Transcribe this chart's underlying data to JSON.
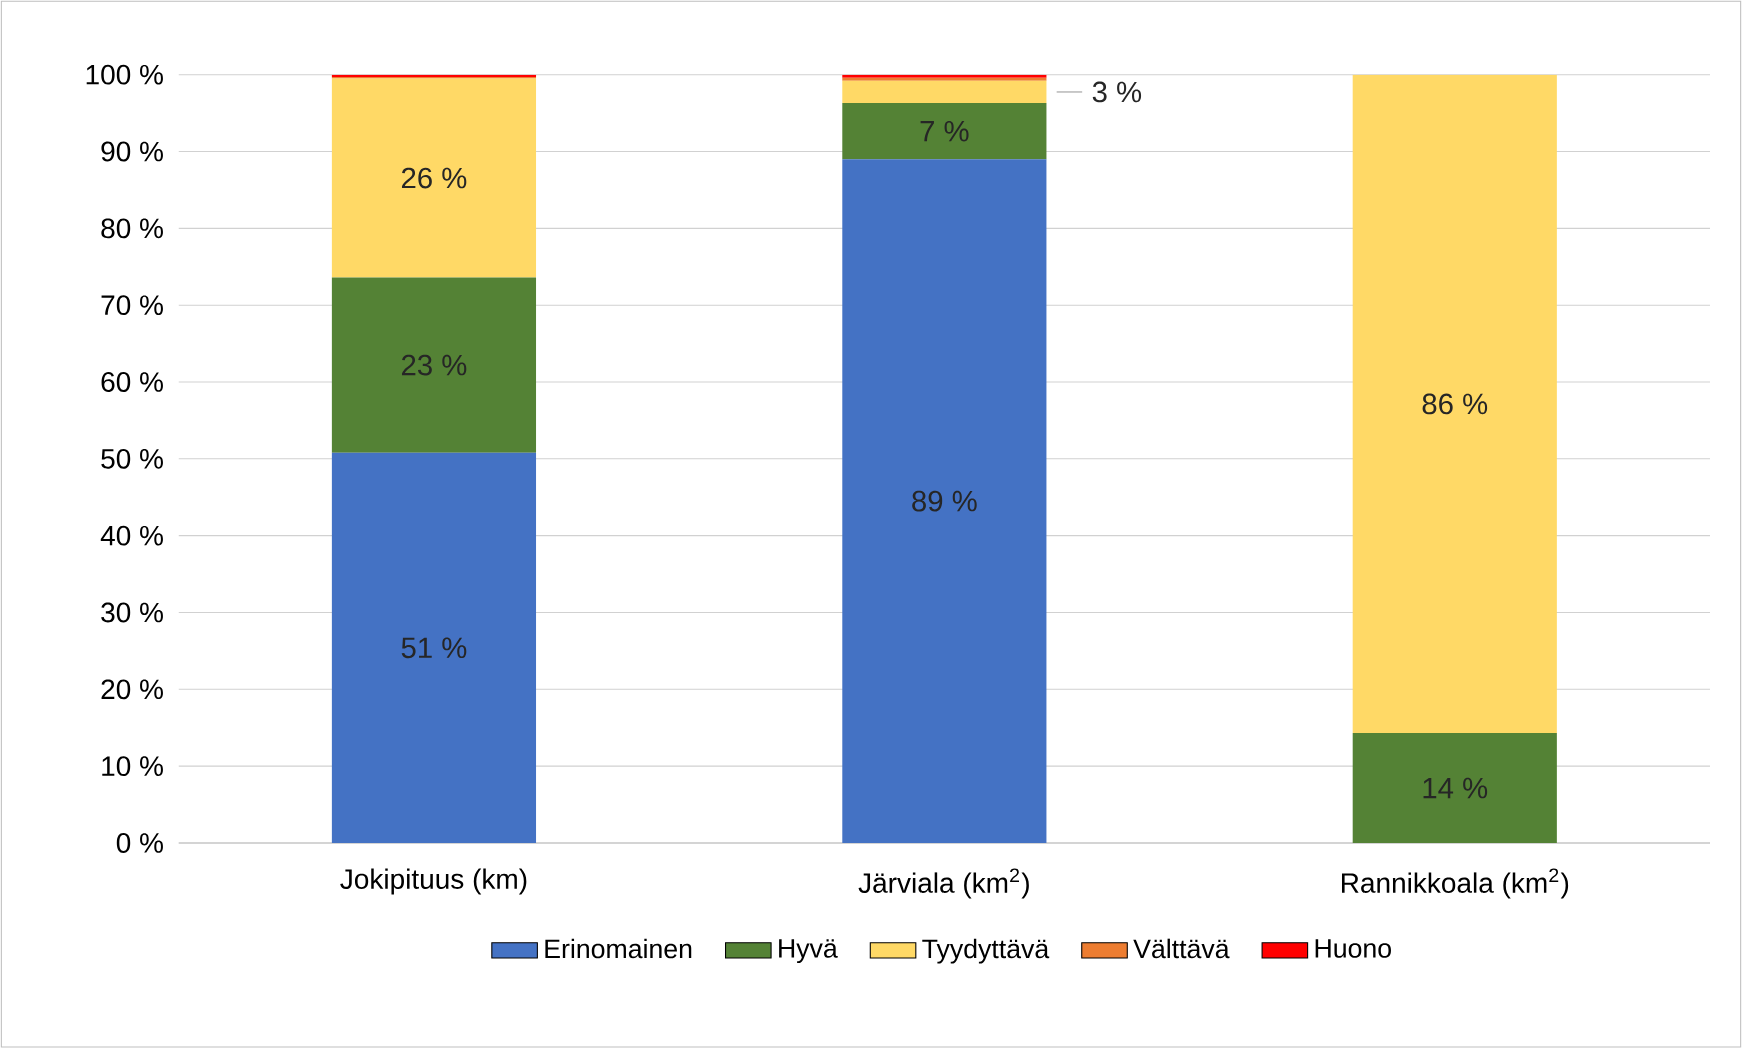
{
  "chart_data": {
    "type": "bar",
    "stacked": true,
    "categories": [
      "Jokipituus (km)",
      "Järviala (km$^{2}$)",
      "Rannikkoala (km$^{2}$)"
    ],
    "series": [
      {
        "name": "Erinomainen",
        "color": "#4472c4",
        "values": [
          50.8,
          89,
          0
        ],
        "value_labels": [
          "51 %",
          "89 %",
          null
        ]
      },
      {
        "name": "Hyvä",
        "color": "#548235",
        "values": [
          22.8,
          7.3,
          14.3
        ],
        "value_labels": [
          "23 %",
          "7 %",
          "14 %"
        ]
      },
      {
        "name": "Tyydyttävä",
        "color": "#ffd966",
        "values": [
          25.9,
          2.9,
          85.7
        ],
        "value_labels": [
          "26 %",
          "3 %",
          "86 %"
        ]
      },
      {
        "name": "Välttävä",
        "color": "#ed7d31",
        "values": [
          0.2,
          0.4,
          0
        ],
        "value_labels": [
          null,
          null,
          null
        ]
      },
      {
        "name": "Huono",
        "color": "#ff0000",
        "values": [
          0.3,
          0.4,
          0
        ],
        "value_labels": [
          null,
          null,
          null
        ]
      }
    ],
    "ylim": [
      0,
      100
    ],
    "yticks": [
      {
        "value": 0,
        "label": "0 %"
      },
      {
        "value": 10,
        "label": "10 %"
      },
      {
        "value": 20,
        "label": "20 %"
      },
      {
        "value": 30,
        "label": "30 %"
      },
      {
        "value": 40,
        "label": "40 %"
      },
      {
        "value": 50,
        "label": "50 %"
      },
      {
        "value": 60,
        "label": "60 %"
      },
      {
        "value": 70,
        "label": "70 %"
      },
      {
        "value": 80,
        "label": "80 %"
      },
      {
        "value": 90,
        "label": "90 %"
      },
      {
        "value": 100,
        "label": "100 %"
      }
    ],
    "grid": "y",
    "legend": "bottom"
  }
}
